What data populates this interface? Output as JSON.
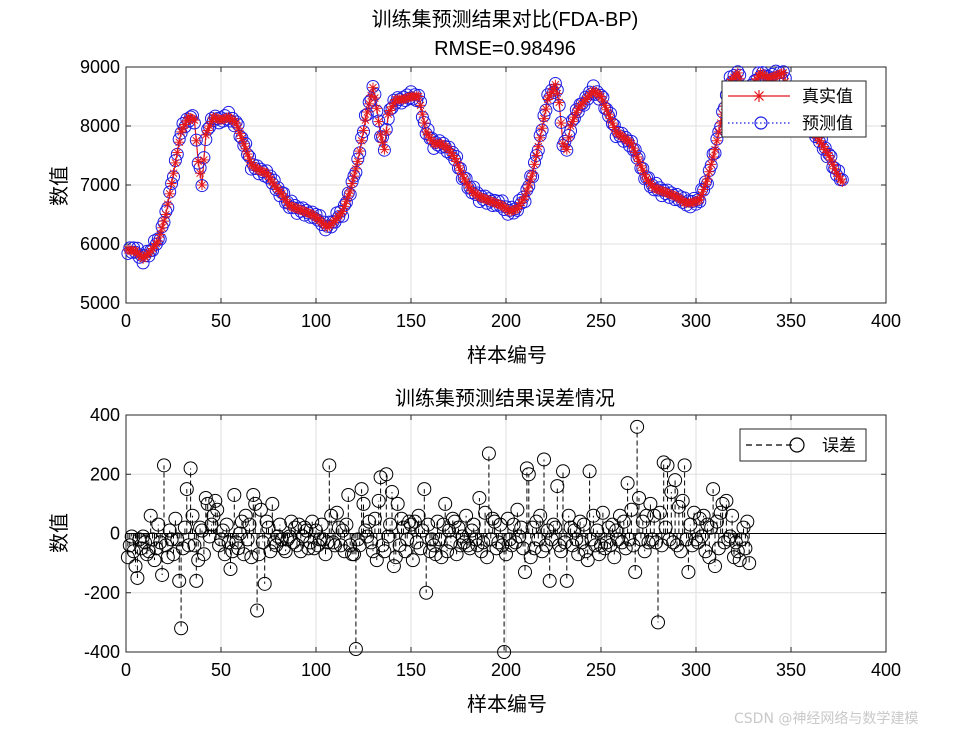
{
  "colors": {
    "actual": "#e3191c",
    "predicted": "#1a1ae6",
    "error": "#000000",
    "grid": "#dfdfdf",
    "axis": "#262626"
  },
  "watermark": "CSDN @神经网络与数学建模",
  "chart_data": [
    {
      "type": "line",
      "title": "训练集预测结果对比(FDA-BP)",
      "subtitle": "RMSE=0.98496",
      "xlabel": "样本编号",
      "ylabel": "数值",
      "xlim": [
        0,
        400
      ],
      "ylim": [
        5000,
        9000
      ],
      "xticks": [
        0,
        50,
        100,
        150,
        200,
        250,
        300,
        350,
        400
      ],
      "yticks": [
        5000,
        6000,
        7000,
        8000,
        9000
      ],
      "grid": true,
      "legend_position": "top-right",
      "x_start": 1,
      "x_end": 377,
      "series": [
        {
          "name": "真实值",
          "style": "red-line-star-marker",
          "keyframes": [
            [
              1,
              5900
            ],
            [
              5,
              5880
            ],
            [
              9,
              5750
            ],
            [
              13,
              5880
            ],
            [
              17,
              6050
            ],
            [
              21,
              6500
            ],
            [
              25,
              7200
            ],
            [
              29,
              7900
            ],
            [
              33,
              8150
            ],
            [
              36,
              8100
            ],
            [
              38,
              7400
            ],
            [
              40,
              7000
            ],
            [
              42,
              7850
            ],
            [
              46,
              8150
            ],
            [
              50,
              8100
            ],
            [
              54,
              8150
            ],
            [
              58,
              8050
            ],
            [
              62,
              7700
            ],
            [
              66,
              7350
            ],
            [
              70,
              7250
            ],
            [
              74,
              7200
            ],
            [
              78,
              7000
            ],
            [
              82,
              6850
            ],
            [
              86,
              6650
            ],
            [
              90,
              6600
            ],
            [
              94,
              6550
            ],
            [
              98,
              6500
            ],
            [
              102,
              6400
            ],
            [
              106,
              6280
            ],
            [
              110,
              6400
            ],
            [
              114,
              6550
            ],
            [
              118,
              6900
            ],
            [
              122,
              7400
            ],
            [
              126,
              8100
            ],
            [
              130,
              8650
            ],
            [
              132,
              8300
            ],
            [
              134,
              7850
            ],
            [
              136,
              7600
            ],
            [
              138,
              8200
            ],
            [
              142,
              8450
            ],
            [
              146,
              8450
            ],
            [
              150,
              8500
            ],
            [
              154,
              8500
            ],
            [
              158,
              7900
            ],
            [
              162,
              7700
            ],
            [
              166,
              7700
            ],
            [
              170,
              7600
            ],
            [
              174,
              7400
            ],
            [
              178,
              7100
            ],
            [
              182,
              6900
            ],
            [
              186,
              6800
            ],
            [
              190,
              6750
            ],
            [
              194,
              6700
            ],
            [
              198,
              6650
            ],
            [
              202,
              6550
            ],
            [
              206,
              6600
            ],
            [
              210,
              6800
            ],
            [
              214,
              7200
            ],
            [
              218,
              7800
            ],
            [
              222,
              8450
            ],
            [
              226,
              8700
            ],
            [
              228,
              8400
            ],
            [
              230,
              7700
            ],
            [
              232,
              7600
            ],
            [
              234,
              8000
            ],
            [
              238,
              8300
            ],
            [
              242,
              8450
            ],
            [
              246,
              8600
            ],
            [
              250,
              8500
            ],
            [
              254,
              8200
            ],
            [
              258,
              7900
            ],
            [
              262,
              7800
            ],
            [
              266,
              7700
            ],
            [
              270,
              7400
            ],
            [
              274,
              7100
            ],
            [
              278,
              6950
            ],
            [
              282,
              6900
            ],
            [
              286,
              6850
            ],
            [
              290,
              6800
            ],
            [
              294,
              6700
            ],
            [
              298,
              6700
            ],
            [
              302,
              6750
            ],
            [
              306,
              7100
            ],
            [
              310,
              7600
            ],
            [
              314,
              8200
            ],
            [
              318,
              8750
            ],
            [
              322,
              8900
            ],
            [
              326,
              8500
            ],
            [
              330,
              8700
            ],
            [
              334,
              8900
            ],
            [
              338,
              8800
            ],
            [
              342,
              8850
            ],
            [
              346,
              8900
            ],
            [
              350,
              8300
            ],
            [
              354,
              8300
            ],
            [
              358,
              8150
            ],
            [
              362,
              7900
            ],
            [
              366,
              7700
            ],
            [
              370,
              7500
            ],
            [
              374,
              7200
            ],
            [
              377,
              7050
            ]
          ]
        },
        {
          "name": "预测值",
          "style": "blue-dotted-line-circle-marker",
          "offsets": [
            -60,
            40,
            -30,
            50,
            -20,
            80,
            -40,
            30,
            -70,
            20,
            60,
            -50,
            10,
            -30,
            90,
            -10,
            40,
            -80,
            20,
            -20,
            50,
            -60,
            30,
            0
          ]
        },
        {
          "name": "误差",
          "style": "black-dashed-stem-circle-marker",
          "values": [
            -80,
            -40,
            -10,
            -60,
            -110,
            -150,
            -20,
            -50,
            -10,
            -30,
            -70,
            -60,
            60,
            -20,
            -90,
            -50,
            30,
            -30,
            -140,
            230,
            -40,
            -80,
            10,
            -20,
            -70,
            50,
            -20,
            -160,
            -320,
            -50,
            20,
            150,
            -40,
            220,
            60,
            -40,
            -160,
            -90,
            20,
            10,
            -70,
            120,
            100,
            -10,
            30,
            60,
            110,
            80,
            -40,
            -20,
            10,
            -70,
            30,
            -30,
            -120,
            -60,
            130,
            -30,
            -50,
            0,
            40,
            -70,
            60,
            -20,
            30,
            -80,
            130,
            100,
            -260,
            -70,
            80,
            -30,
            -170,
            40,
            20,
            -60,
            100,
            -30,
            -40,
            -10,
            30,
            -20,
            -50,
            -60,
            -20,
            -10,
            40,
            -30,
            20,
            -40,
            30,
            -60,
            -10,
            20,
            10,
            -50,
            -30,
            40,
            -50,
            10,
            -40,
            -20,
            30,
            -20,
            -70,
            -30,
            230,
            60,
            -30,
            -40,
            70,
            20,
            -40,
            10,
            -60,
            30,
            130,
            -40,
            -70,
            -70,
            -390,
            -20,
            -40,
            150,
            100,
            10,
            -10,
            40,
            -30,
            -60,
            50,
            -90,
            110,
            190,
            -40,
            -60,
            200,
            -10,
            30,
            140,
            -110,
            -80,
            100,
            -40,
            50,
            20,
            -60,
            -20,
            40,
            30,
            -90,
            40,
            -30,
            60,
            -50,
            10,
            150,
            -200,
            30,
            -60,
            -20,
            -40,
            -70,
            40,
            -20,
            -80,
            30,
            100,
            -60,
            10,
            -30,
            50,
            40,
            -70,
            20,
            -40,
            -10,
            -30,
            60,
            -40,
            -50,
            10,
            30,
            -20,
            -40,
            120,
            -60,
            -30,
            70,
            -80,
            270,
            -20,
            50,
            40,
            -50,
            -30,
            30,
            -40,
            -400,
            -70,
            50,
            -20,
            -40,
            30,
            -30,
            80,
            -10,
            20,
            -50,
            -130,
            220,
            200,
            -80,
            20,
            -50,
            40,
            -20,
            60,
            -60,
            250,
            -40,
            10,
            -160,
            -20,
            30,
            20,
            160,
            -40,
            -60,
            210,
            -30,
            -160,
            60,
            20,
            -40,
            10,
            -20,
            -70,
            40,
            -30,
            30,
            -60,
            -90,
            210,
            -20,
            60,
            -40,
            10,
            -70,
            -40,
            70,
            -50,
            -30,
            20,
            -40,
            30,
            -80,
            10,
            -20,
            60,
            -30,
            40,
            -50,
            170,
            -20,
            80,
            -40,
            -130,
            360,
            120,
            -20,
            40,
            -60,
            60,
            -30,
            100,
            -20,
            60,
            -30,
            -300,
            70,
            -40,
            240,
            20,
            230,
            -20,
            140,
            -30,
            180,
            -40,
            90,
            -60,
            110,
            230,
            -20,
            -130,
            30,
            -40,
            70,
            -20,
            -30,
            50,
            -10,
            60,
            -60,
            30,
            -80,
            20,
            150,
            -110,
            40,
            -50,
            70,
            100,
            -30,
            110,
            -20,
            -10,
            60,
            -80,
            -30,
            -60,
            -90,
            -20,
            20,
            -50,
            40,
            -100
          ]
        }
      ]
    },
    {
      "type": "stem",
      "title": "训练集预测结果误差情况",
      "xlabel": "样本编号",
      "ylabel": "数值",
      "xlim": [
        0,
        400
      ],
      "ylim": [
        -400,
        400
      ],
      "xticks": [
        0,
        50,
        100,
        150,
        200,
        250,
        300,
        350,
        400
      ],
      "yticks": [
        -400,
        -200,
        0,
        200,
        400
      ],
      "grid": true,
      "legend_position": "top-right",
      "legend": [
        "误差"
      ]
    }
  ]
}
